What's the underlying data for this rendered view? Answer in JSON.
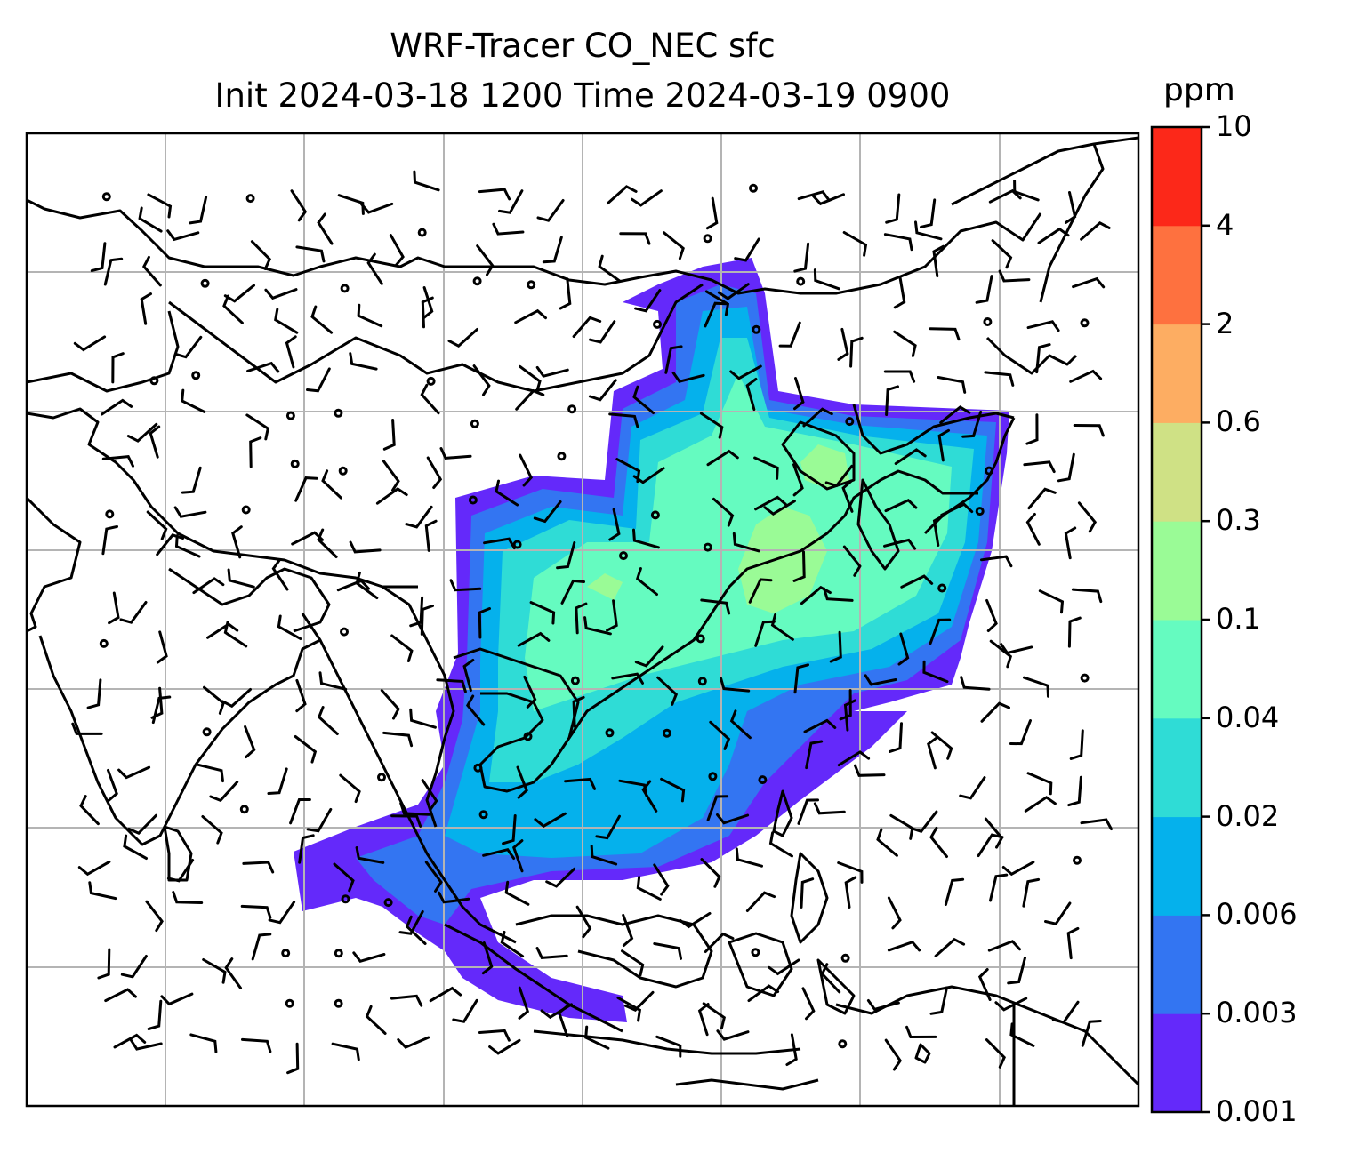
{
  "title": {
    "line1": "WRF-Tracer CO_NEC sfc",
    "line2": "Init 2024-03-18 1200 Time 2024-03-19 0900"
  },
  "colorbar": {
    "unit": "ppm",
    "levels": [
      "0.001",
      "0.003",
      "0.006",
      "0.02",
      "0.04",
      "0.1",
      "0.3",
      "0.6",
      "2",
      "4",
      "10"
    ],
    "colors": [
      "#6429fa",
      "#3375f2",
      "#05b1ec",
      "#2fdcd6",
      "#65fbc0",
      "#9afb96",
      "#cfe185",
      "#fdad62",
      "#fe713f",
      "#fc2819"
    ]
  },
  "style": {
    "coast_color": "#000000",
    "grid_color": "#b4b4b4",
    "barb_color": "#000000"
  }
}
